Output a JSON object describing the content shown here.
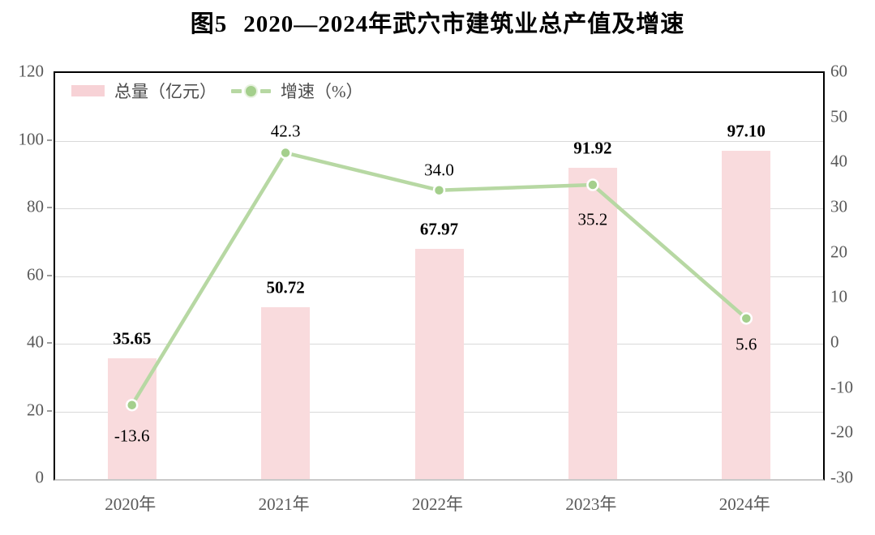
{
  "title": {
    "prefix": "图5",
    "main": "2020—2024年武穴市建筑业总产值及增速"
  },
  "legend": {
    "bar_label": "总量（亿元）",
    "line_label": "增速（%）"
  },
  "chart_data": {
    "type": "bar+line combo, dual axis",
    "categories": [
      "2020年",
      "2021年",
      "2022年",
      "2023年",
      "2024年"
    ],
    "series": [
      {
        "name": "总量（亿元）",
        "type": "bar",
        "axis": "left",
        "values": [
          35.65,
          50.72,
          67.97,
          91.92,
          97.1
        ],
        "labels": [
          "35.65",
          "50.72",
          "67.97",
          "91.92",
          "97.10"
        ]
      },
      {
        "name": "增速（%）",
        "type": "line",
        "axis": "right",
        "values": [
          -13.6,
          42.3,
          34.0,
          35.2,
          5.6
        ],
        "labels": [
          "-13.6",
          "42.3",
          "34.0",
          "35.2",
          "5.6"
        ],
        "label_dy": [
          38,
          -27,
          -25,
          43,
          32
        ]
      }
    ],
    "left_axis": {
      "min": 0,
      "max": 120,
      "step": 20,
      "ticks": [
        "0",
        "20",
        "40",
        "60",
        "80",
        "100",
        "120"
      ]
    },
    "right_axis": {
      "min": -30,
      "max": 60,
      "step": 10,
      "ticks": [
        "-30",
        "-20",
        "-10",
        "0",
        "10",
        "20",
        "30",
        "40",
        "50",
        "60"
      ]
    },
    "grid": "horizontal gridlines aligned to left axis every 20",
    "legend_position": "top-left inside plot area"
  },
  "colors": {
    "bar_fill": "#f9dbdd",
    "legend_bar_swatch": "#f7d2d6",
    "line": "#b7d8a3",
    "marker": "#a4cf8c",
    "marker_ring": "#ffffff",
    "gridline": "#d9d9d9",
    "frame": "#000000",
    "bottom_axis": "#c9c9c9",
    "axis_text": "#595959",
    "data_label_text": "#000000"
  }
}
